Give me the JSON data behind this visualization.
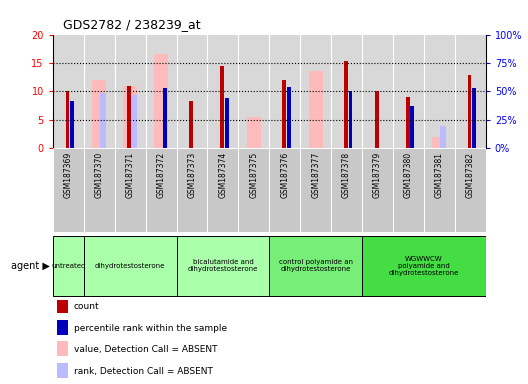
{
  "title": "GDS2782 / 238239_at",
  "samples": [
    "GSM187369",
    "GSM187370",
    "GSM187371",
    "GSM187372",
    "GSM187373",
    "GSM187374",
    "GSM187375",
    "GSM187376",
    "GSM187377",
    "GSM187378",
    "GSM187379",
    "GSM187380",
    "GSM187381",
    "GSM187382"
  ],
  "count_values": [
    10.1,
    null,
    11.0,
    null,
    8.2,
    14.5,
    null,
    11.9,
    null,
    15.3,
    10.0,
    9.0,
    null,
    12.8
  ],
  "percentile_values": [
    8.2,
    null,
    null,
    10.5,
    null,
    8.8,
    null,
    10.7,
    null,
    10.0,
    null,
    7.3,
    null,
    10.5
  ],
  "absent_value_values": [
    null,
    11.9,
    11.0,
    16.6,
    null,
    null,
    5.5,
    null,
    13.5,
    null,
    null,
    null,
    1.9,
    null
  ],
  "absent_rank_values": [
    null,
    9.6,
    9.3,
    null,
    null,
    null,
    null,
    null,
    null,
    null,
    null,
    null,
    3.9,
    null
  ],
  "agent_groups": [
    {
      "label": "untreated",
      "start": 0,
      "end": 1,
      "color": "#aaffaa"
    },
    {
      "label": "dihydrotestosterone",
      "start": 1,
      "end": 4,
      "color": "#aaffaa"
    },
    {
      "label": "bicalutamide and\ndihydrotestosterone",
      "start": 4,
      "end": 7,
      "color": "#aaffaa"
    },
    {
      "label": "control polyamide an\ndihydrotestosterone",
      "start": 7,
      "end": 10,
      "color": "#77ee77"
    },
    {
      "label": "WGWWCW\npolyamide and\ndihydrotestosterone",
      "start": 10,
      "end": 14,
      "color": "#44dd44"
    }
  ],
  "ylim_left": [
    0,
    20
  ],
  "ylim_right": [
    0,
    100
  ],
  "yticks_left": [
    0,
    5,
    10,
    15,
    20
  ],
  "yticks_right": [
    0,
    25,
    50,
    75,
    100
  ],
  "ytick_labels_left": [
    "0",
    "5",
    "10",
    "15",
    "20"
  ],
  "ytick_labels_right": [
    "0%",
    "25%",
    "50%",
    "75%",
    "100%"
  ],
  "bar_width": 0.25,
  "count_color": "#bb0000",
  "percentile_color": "#0000bb",
  "absent_value_color": "#ffbbbb",
  "absent_rank_color": "#bbbbff",
  "plot_bg_color": "#d8d8d8",
  "sample_bg_color": "#c8c8c8",
  "legend_items": [
    {
      "color": "#bb0000",
      "label": "count"
    },
    {
      "color": "#0000bb",
      "label": "percentile rank within the sample"
    },
    {
      "color": "#ffbbbb",
      "label": "value, Detection Call = ABSENT"
    },
    {
      "color": "#bbbbff",
      "label": "rank, Detection Call = ABSENT"
    }
  ]
}
